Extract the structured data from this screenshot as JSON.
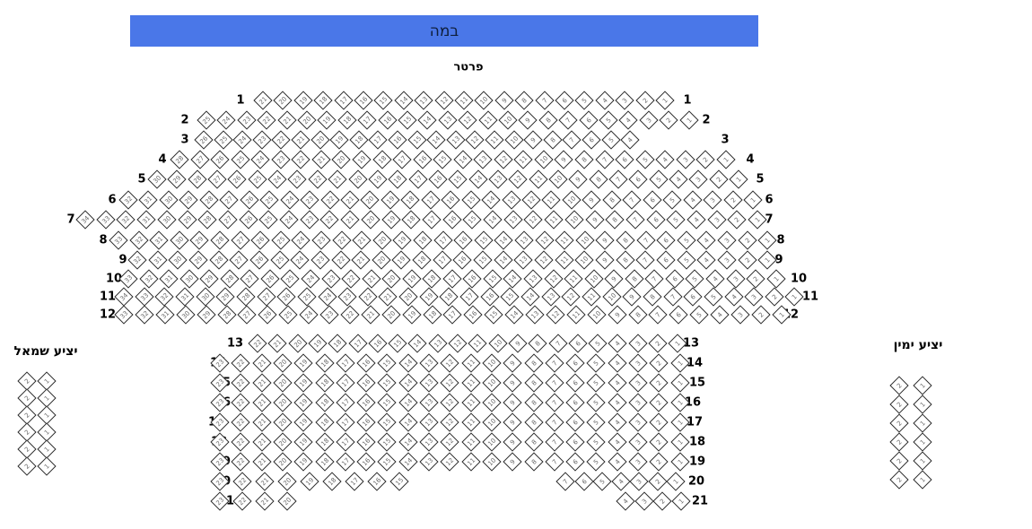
{
  "colors": {
    "stage_bg": "#4a77e8",
    "stage_text": "#0f1f3d",
    "seat_border": "#2b2b2b",
    "seat_fill": "#ffffff",
    "seat_number": "#666666",
    "label_text": "#000000"
  },
  "stage": {
    "label": "במה"
  },
  "section": {
    "title": "פרטר"
  },
  "parterre": {
    "rows": [
      {
        "label": "1",
        "segments": [
          {
            "from": 21,
            "to": 1
          }
        ]
      },
      {
        "label": "2",
        "segments": [
          {
            "from": 25,
            "to": 1
          }
        ]
      },
      {
        "label": "3",
        "segments": [
          {
            "from": 26,
            "to": 4
          }
        ]
      },
      {
        "label": "4",
        "segments": [
          {
            "from": 28,
            "to": 1
          }
        ]
      },
      {
        "label": "5",
        "segments": [
          {
            "from": 30,
            "to": 1
          }
        ]
      },
      {
        "label": "6",
        "segments": [
          {
            "from": 32,
            "to": 1
          }
        ]
      },
      {
        "label": "7",
        "segments": [
          {
            "from": 34,
            "to": 1
          }
        ]
      },
      {
        "label": "8",
        "segments": [
          {
            "from": 33,
            "to": 1
          }
        ]
      },
      {
        "label": "9",
        "segments": [
          {
            "from": 32,
            "to": 1
          }
        ]
      },
      {
        "label": "10",
        "segments": [
          {
            "from": 33,
            "to": 1
          }
        ]
      },
      {
        "label": "11",
        "segments": [
          {
            "from": 34,
            "to": 1
          }
        ]
      },
      {
        "label": "12",
        "segments": [
          {
            "from": 33,
            "to": 1
          }
        ]
      },
      {
        "label": "13",
        "segments": [
          {
            "from": 22,
            "to": 1
          }
        ]
      },
      {
        "label": "14",
        "segments": [
          {
            "from": 23,
            "to": 1
          }
        ]
      },
      {
        "label": "15",
        "segments": [
          {
            "from": 23,
            "to": 1
          }
        ]
      },
      {
        "label": "16",
        "segments": [
          {
            "from": 23,
            "to": 1
          }
        ]
      },
      {
        "label": "17",
        "segments": [
          {
            "from": 23,
            "to": 1
          }
        ]
      },
      {
        "label": "18",
        "segments": [
          {
            "from": 23,
            "to": 1
          }
        ]
      },
      {
        "label": "19",
        "segments": [
          {
            "from": 23,
            "to": 1
          }
        ]
      },
      {
        "label": "20",
        "segments": [
          {
            "from": 23,
            "to": 15
          },
          {
            "from": 7,
            "to": 1
          }
        ]
      },
      {
        "label": "21",
        "segments": [
          {
            "from": 23,
            "to": 20
          },
          {
            "from": 4,
            "to": 1
          }
        ]
      }
    ]
  },
  "balconies": {
    "left": {
      "title": "יציע שמאל",
      "rows": [
        [
          2,
          1
        ],
        [
          2,
          1
        ],
        [
          2,
          1
        ],
        [
          2,
          1
        ],
        [
          2,
          1
        ],
        [
          2,
          1
        ]
      ]
    },
    "right": {
      "title": "יציע ימין",
      "rows": [
        [
          2,
          1
        ],
        [
          2,
          1
        ],
        [
          2,
          1
        ],
        [
          2,
          1
        ],
        [
          2,
          1
        ],
        [
          2,
          1
        ]
      ]
    }
  }
}
